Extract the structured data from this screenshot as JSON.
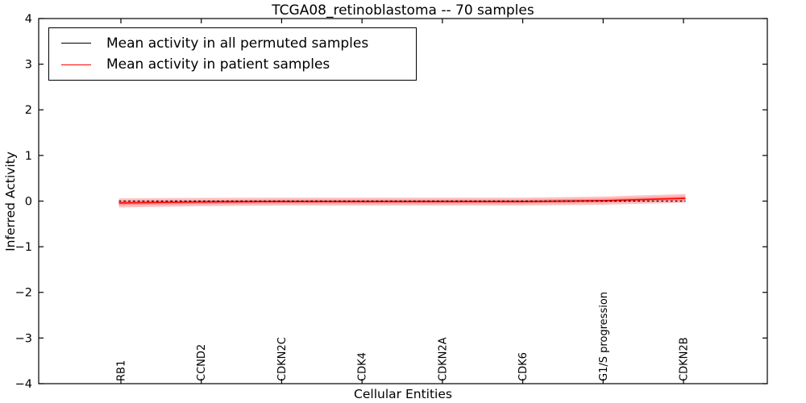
{
  "chart_data": {
    "type": "line",
    "title": "TCGA08_retinoblastoma -- 70 samples",
    "xlabel": "Cellular Entities",
    "ylabel": "Inferred Activity",
    "ylim": [
      -4,
      4
    ],
    "yticks": [
      4,
      3,
      2,
      1,
      0,
      -1,
      -2,
      -3,
      -4
    ],
    "grid": false,
    "legend_position": "upper left",
    "categories": [
      "RB1",
      "CCND2",
      "CDKN2C",
      "CDK4",
      "CDKN2A",
      "CDK6",
      "G1/S progression",
      "CDKN2B"
    ],
    "series": [
      {
        "name": "Mean activity in all permuted samples",
        "color": "#000000",
        "style": "dashed",
        "values": [
          0.0,
          0.0,
          0.0,
          0.0,
          0.0,
          0.0,
          0.0,
          0.0
        ]
      },
      {
        "name": "Mean activity in patient samples",
        "color": "#ff0000",
        "style": "solid",
        "values": [
          -0.04,
          -0.02,
          -0.01,
          -0.01,
          -0.01,
          -0.01,
          0.01,
          0.06
        ]
      }
    ],
    "band": {
      "series": "Mean activity in patient samples",
      "halfwidth": [
        0.1,
        0.09,
        0.085,
        0.085,
        0.085,
        0.085,
        0.09,
        0.095
      ],
      "color": "#ff3333"
    }
  }
}
